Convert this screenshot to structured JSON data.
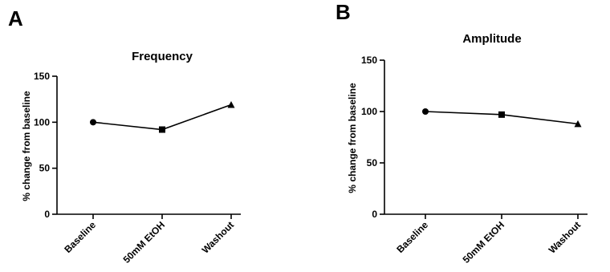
{
  "chart_data": [
    {
      "panel": "A",
      "type": "line",
      "title": "Frequency",
      "xlabel": "",
      "ylabel": "% change from baseline",
      "categories": [
        "Baseline",
        "50mM EtOH",
        "Washout"
      ],
      "values": [
        100,
        92,
        119
      ],
      "markers": [
        "circle",
        "square",
        "triangle"
      ],
      "ylim": [
        0,
        150
      ],
      "yticks": [
        0,
        50,
        100,
        150
      ],
      "grid": false,
      "legend": "none"
    },
    {
      "panel": "B",
      "type": "line",
      "title": "Amplitude",
      "xlabel": "",
      "ylabel": "% change from baseline",
      "categories": [
        "Baseline",
        "50mM EtOH",
        "Washout"
      ],
      "values": [
        100,
        97,
        88
      ],
      "markers": [
        "circle",
        "square",
        "triangle"
      ],
      "ylim": [
        0,
        150
      ],
      "yticks": [
        0,
        50,
        100,
        150
      ],
      "grid": false,
      "legend": "none"
    }
  ]
}
